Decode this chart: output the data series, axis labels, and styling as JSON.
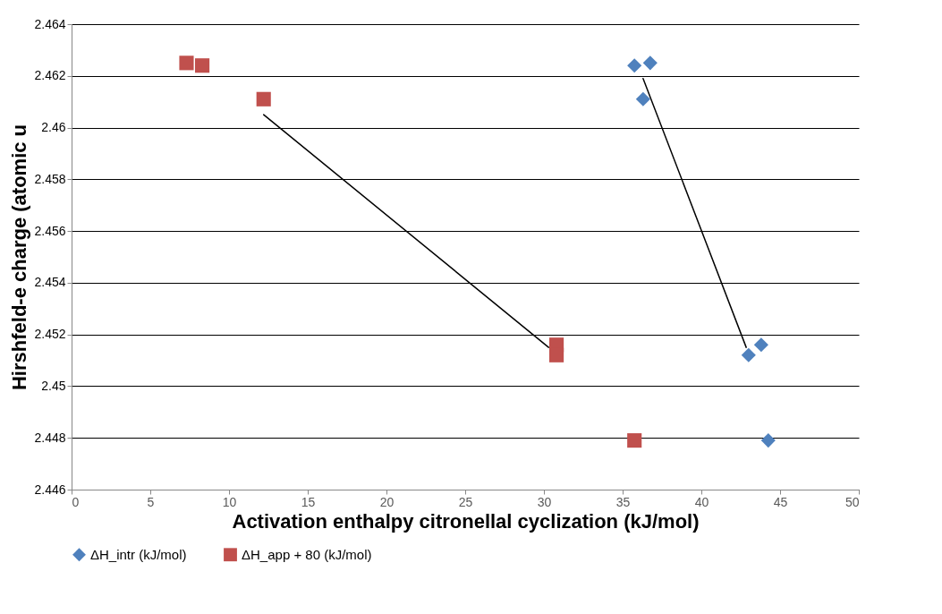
{
  "chart_data": {
    "type": "scatter",
    "xlabel": "Activation enthalpy citronellal cyclization (kJ/mol)",
    "ylabel": "Hirshfeld-e charge (atomic u",
    "series": [
      {
        "name": "ΔH_intr (kJ/mol)",
        "color": "#4f81bd",
        "marker": "diamond",
        "x": [
          35.75,
          36.75,
          36.3,
          43.0,
          43.8,
          44.25
        ],
        "values": [
          2.4624,
          2.4625,
          2.4611,
          2.4512,
          2.4516,
          2.4479
        ]
      },
      {
        "name": "ΔH_app + 80 (kJ/mol)",
        "color": "#c0504d",
        "marker": "square",
        "x": [
          7.3,
          8.3,
          12.2,
          30.8,
          30.8,
          35.75
        ],
        "values": [
          2.4625,
          2.4624,
          2.4611,
          2.4516,
          2.4512,
          2.4479
        ]
      },
      {
        "type": "line",
        "color": "#000000",
        "line_style": "solid",
        "x": [
          12.2,
          30.3
        ],
        "values": [
          2.4605,
          2.4515
        ]
      },
      {
        "type": "line",
        "color": "#000000",
        "line_style": "solid",
        "x": [
          36.3,
          42.85
        ],
        "values": [
          2.4619,
          2.4515
        ]
      }
    ],
    "xlim": [
      0,
      50
    ],
    "xticks": [
      0,
      5,
      10,
      15,
      20,
      25,
      30,
      35,
      40,
      45,
      50
    ],
    "ylim": [
      2.446,
      2.464
    ],
    "yticks": [
      2.446,
      2.448,
      2.45,
      2.452,
      2.454,
      2.456,
      2.458,
      2.46,
      2.462,
      2.464
    ],
    "grid": "y",
    "legend": "bottom"
  }
}
